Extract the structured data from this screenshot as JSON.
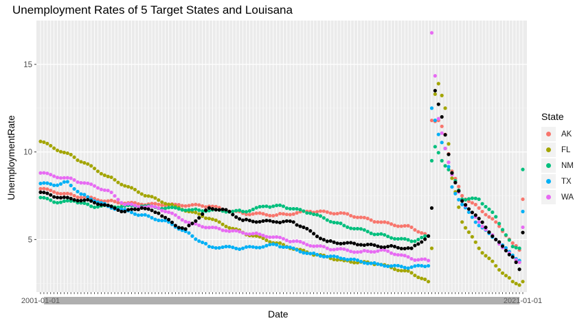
{
  "chart_data": {
    "type": "scatter",
    "title": "Unemployment Rates of 5 Target States and Louisana",
    "xlabel": "Date",
    "ylabel": "UnemploymentRate",
    "ylim": [
      2.0,
      17.5
    ],
    "yticks": [
      5,
      10,
      15
    ],
    "grid": true,
    "legend": {
      "title": "State",
      "placement": "right"
    },
    "n_points": 144,
    "x_tick_labels_first": "2001-01-01",
    "x_tick_labels_last": "2021-01-01",
    "series": [
      {
        "name": "AK",
        "color": "#f8766d",
        "keys": [
          [
            0,
            7.9
          ],
          [
            10,
            7.5
          ],
          [
            20,
            7.2
          ],
          [
            30,
            7.0
          ],
          [
            40,
            7.0
          ],
          [
            50,
            6.9
          ],
          [
            60,
            6.5
          ],
          [
            70,
            6.4
          ],
          [
            80,
            6.6
          ],
          [
            90,
            6.5
          ],
          [
            100,
            6.0
          ],
          [
            110,
            5.7
          ],
          [
            115,
            5.2
          ],
          [
            116,
            11.8
          ],
          [
            118,
            11.8
          ],
          [
            120,
            11.0
          ],
          [
            122,
            8.9
          ],
          [
            125,
            7.5
          ],
          [
            130,
            6.8
          ],
          [
            135,
            6.0
          ],
          [
            140,
            4.8
          ],
          [
            142,
            4.4
          ],
          [
            143,
            7.3
          ]
        ]
      },
      {
        "name": "FL",
        "color": "#a3a500",
        "keys": [
          [
            0,
            10.6
          ],
          [
            10,
            9.7
          ],
          [
            20,
            8.6
          ],
          [
            30,
            7.6
          ],
          [
            40,
            6.9
          ],
          [
            50,
            6.2
          ],
          [
            60,
            5.4
          ],
          [
            70,
            4.8
          ],
          [
            80,
            4.2
          ],
          [
            90,
            3.8
          ],
          [
            100,
            3.6
          ],
          [
            110,
            3.1
          ],
          [
            115,
            2.6
          ],
          [
            116,
            4.5
          ],
          [
            117,
            13.3
          ],
          [
            118,
            13.9
          ],
          [
            120,
            12.5
          ],
          [
            122,
            8.5
          ],
          [
            125,
            6.0
          ],
          [
            130,
            4.5
          ],
          [
            135,
            3.5
          ],
          [
            140,
            2.6
          ],
          [
            142,
            2.4
          ],
          [
            143,
            2.6
          ]
        ]
      },
      {
        "name": "NM",
        "color": "#00bf7d",
        "keys": [
          [
            0,
            7.4
          ],
          [
            5,
            7.1
          ],
          [
            10,
            7.2
          ],
          [
            15,
            6.9
          ],
          [
            30,
            6.9
          ],
          [
            45,
            6.7
          ],
          [
            60,
            6.6
          ],
          [
            67,
            6.9
          ],
          [
            72,
            6.9
          ],
          [
            80,
            6.5
          ],
          [
            90,
            5.8
          ],
          [
            100,
            5.3
          ],
          [
            110,
            4.9
          ],
          [
            115,
            5.2
          ],
          [
            116,
            9.5
          ],
          [
            117,
            10.3
          ],
          [
            119,
            9.5
          ],
          [
            122,
            8.8
          ],
          [
            125,
            7.3
          ],
          [
            130,
            7.3
          ],
          [
            135,
            6.3
          ],
          [
            140,
            4.6
          ],
          [
            142,
            4.5
          ],
          [
            143,
            9.0
          ]
        ]
      },
      {
        "name": "TX",
        "color": "#00b0f6",
        "keys": [
          [
            0,
            8.2
          ],
          [
            5,
            8.1
          ],
          [
            8,
            8.3
          ],
          [
            12,
            7.6
          ],
          [
            20,
            6.9
          ],
          [
            30,
            6.4
          ],
          [
            38,
            6.0
          ],
          [
            45,
            5.2
          ],
          [
            50,
            4.6
          ],
          [
            60,
            4.5
          ],
          [
            70,
            4.7
          ],
          [
            80,
            4.2
          ],
          [
            90,
            3.9
          ],
          [
            100,
            3.6
          ],
          [
            108,
            3.4
          ],
          [
            115,
            3.5
          ],
          [
            116,
            12.5
          ],
          [
            118,
            11.0
          ],
          [
            120,
            10.2
          ],
          [
            122,
            8.0
          ],
          [
            125,
            7.0
          ],
          [
            130,
            5.8
          ],
          [
            135,
            5.0
          ],
          [
            140,
            4.1
          ],
          [
            142,
            3.8
          ],
          [
            143,
            6.6
          ]
        ]
      },
      {
        "name": "WA",
        "color": "#e76bf3",
        "keys": [
          [
            0,
            8.8
          ],
          [
            10,
            8.4
          ],
          [
            20,
            7.8
          ],
          [
            25,
            7.0
          ],
          [
            35,
            6.8
          ],
          [
            45,
            5.9
          ],
          [
            55,
            5.5
          ],
          [
            65,
            5.3
          ],
          [
            75,
            4.9
          ],
          [
            85,
            4.5
          ],
          [
            95,
            4.3
          ],
          [
            102,
            4.4
          ],
          [
            110,
            3.9
          ],
          [
            115,
            3.8
          ],
          [
            116,
            16.8
          ],
          [
            118,
            11.9
          ],
          [
            120,
            10.2
          ],
          [
            122,
            8.7
          ],
          [
            125,
            7.2
          ],
          [
            130,
            6.0
          ],
          [
            135,
            5.0
          ],
          [
            140,
            4.0
          ],
          [
            142,
            3.7
          ],
          [
            143,
            5.7
          ]
        ]
      },
      {
        "name": "",
        "color": "#000000",
        "keys": [
          [
            0,
            7.7
          ],
          [
            5,
            7.4
          ],
          [
            15,
            7.2
          ],
          [
            25,
            6.6
          ],
          [
            30,
            6.8
          ],
          [
            35,
            6.5
          ],
          [
            40,
            5.8
          ],
          [
            43,
            5.6
          ],
          [
            50,
            6.8
          ],
          [
            55,
            6.7
          ],
          [
            60,
            6.1
          ],
          [
            70,
            6.0
          ],
          [
            75,
            6.0
          ],
          [
            85,
            4.9
          ],
          [
            95,
            4.7
          ],
          [
            103,
            4.6
          ],
          [
            110,
            4.5
          ],
          [
            115,
            5.2
          ],
          [
            116,
            6.8
          ],
          [
            117,
            13.5
          ],
          [
            119,
            12.0
          ],
          [
            122,
            8.8
          ],
          [
            125,
            7.2
          ],
          [
            130,
            6.2
          ],
          [
            135,
            5.0
          ],
          [
            140,
            4.0
          ],
          [
            142,
            3.3
          ],
          [
            143,
            5.4
          ]
        ]
      }
    ],
    "legend_entries": [
      "AK",
      "FL",
      "NM",
      "TX",
      "WA"
    ]
  }
}
